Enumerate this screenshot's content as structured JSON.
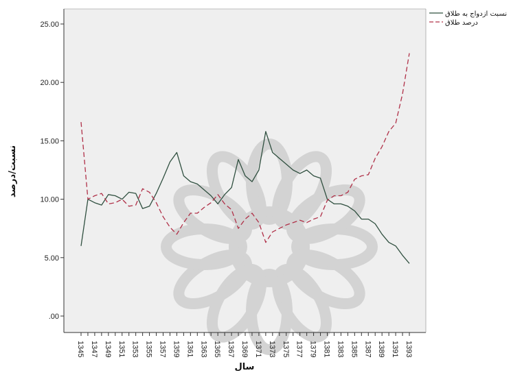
{
  "chart_data": {
    "type": "line",
    "xlabel": "سال",
    "ylabel": "نسبت/درصد",
    "ylim": [
      0,
      25
    ],
    "y_ticks": [
      ".00",
      "5.00",
      "10.00",
      "15.00",
      "20.00",
      "25.00"
    ],
    "x_tick_labels": [
      "1345",
      "1347",
      "1349",
      "1351",
      "1353",
      "1355",
      "1357",
      "1359",
      "1361",
      "1363",
      "1365",
      "1367",
      "1369",
      "1371",
      "1373",
      "1375",
      "1377",
      "1379",
      "1381",
      "1383",
      "1385",
      "1387",
      "1389",
      "1391",
      "1393"
    ],
    "x": [
      1345,
      1346,
      1347,
      1348,
      1349,
      1350,
      1351,
      1352,
      1353,
      1354,
      1355,
      1356,
      1357,
      1358,
      1359,
      1360,
      1361,
      1362,
      1363,
      1364,
      1365,
      1366,
      1367,
      1368,
      1369,
      1370,
      1371,
      1372,
      1373,
      1374,
      1375,
      1376,
      1377,
      1378,
      1379,
      1380,
      1381,
      1382,
      1383,
      1384,
      1385,
      1386,
      1387,
      1388,
      1389,
      1390,
      1391,
      1392,
      1393
    ],
    "series": [
      {
        "name": "نسبت ازدواج به طلاق",
        "color": "#2f4f3f",
        "style": "solid",
        "values": [
          6.0,
          10.0,
          9.7,
          9.5,
          10.4,
          10.3,
          10.0,
          10.6,
          10.5,
          9.2,
          9.4,
          10.5,
          11.8,
          13.2,
          14.0,
          12.0,
          11.5,
          11.3,
          10.8,
          10.3,
          9.6,
          10.4,
          11.0,
          13.4,
          12.0,
          11.5,
          12.5,
          15.8,
          14.0,
          13.5,
          13.0,
          12.5,
          12.2,
          12.5,
          12.0,
          11.8,
          10.0,
          9.6,
          9.6,
          9.4,
          9.0,
          8.3,
          8.3,
          7.9,
          7.0,
          6.3,
          6.0,
          5.2,
          4.5
        ]
      },
      {
        "name": "درصد طلاق",
        "color": "#b03048",
        "style": "dashed",
        "values": [
          16.6,
          10.0,
          10.3,
          10.5,
          9.6,
          9.7,
          10.0,
          9.4,
          9.5,
          10.9,
          10.6,
          9.7,
          8.5,
          7.6,
          7.0,
          8.0,
          8.8,
          8.8,
          9.3,
          9.7,
          10.4,
          9.6,
          9.1,
          7.5,
          8.3,
          8.8,
          8.0,
          6.3,
          7.2,
          7.5,
          7.8,
          8.0,
          8.2,
          8.0,
          8.3,
          8.5,
          9.9,
          10.3,
          10.3,
          10.6,
          11.7,
          12.0,
          12.1,
          13.5,
          14.5,
          15.8,
          16.5,
          19.0,
          22.5
        ]
      }
    ],
    "legend_position": "top-right",
    "grid": false
  }
}
